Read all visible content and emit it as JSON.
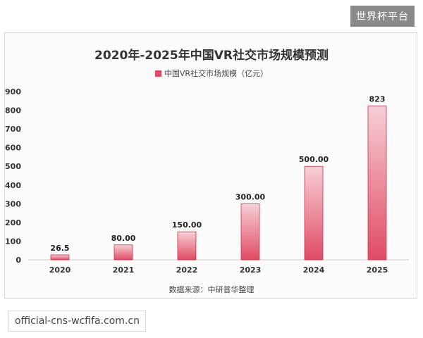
{
  "badge": "世界杯平台",
  "footer": {
    "url": "official-cns-wcfifa.com.cn"
  },
  "chart_data": {
    "type": "bar",
    "title": "2020年-2025年中国VR社交市场规模预测",
    "legend": [
      "中国VR社交市场规模（亿元）"
    ],
    "categories": [
      "2020",
      "2021",
      "2022",
      "2023",
      "2024",
      "2025"
    ],
    "series": [
      {
        "name": "中国VR社交市场规模（亿元）",
        "values": [
          26.5,
          80,
          150,
          300,
          500,
          823
        ]
      }
    ],
    "value_labels": [
      "26.5",
      "80.00",
      "150.00",
      "300.00",
      "500.00",
      "823"
    ],
    "ylim": [
      0,
      900
    ],
    "yticks": [
      0,
      100,
      200,
      300,
      400,
      500,
      600,
      700,
      800,
      900
    ],
    "grid": false,
    "legend_position": "top-center",
    "source": "数据来源：中研普华整理",
    "colors": {
      "bar_top": "#f7cfd6",
      "bar_bottom": "#e04b63",
      "bar_edge": "#c8344e"
    }
  }
}
